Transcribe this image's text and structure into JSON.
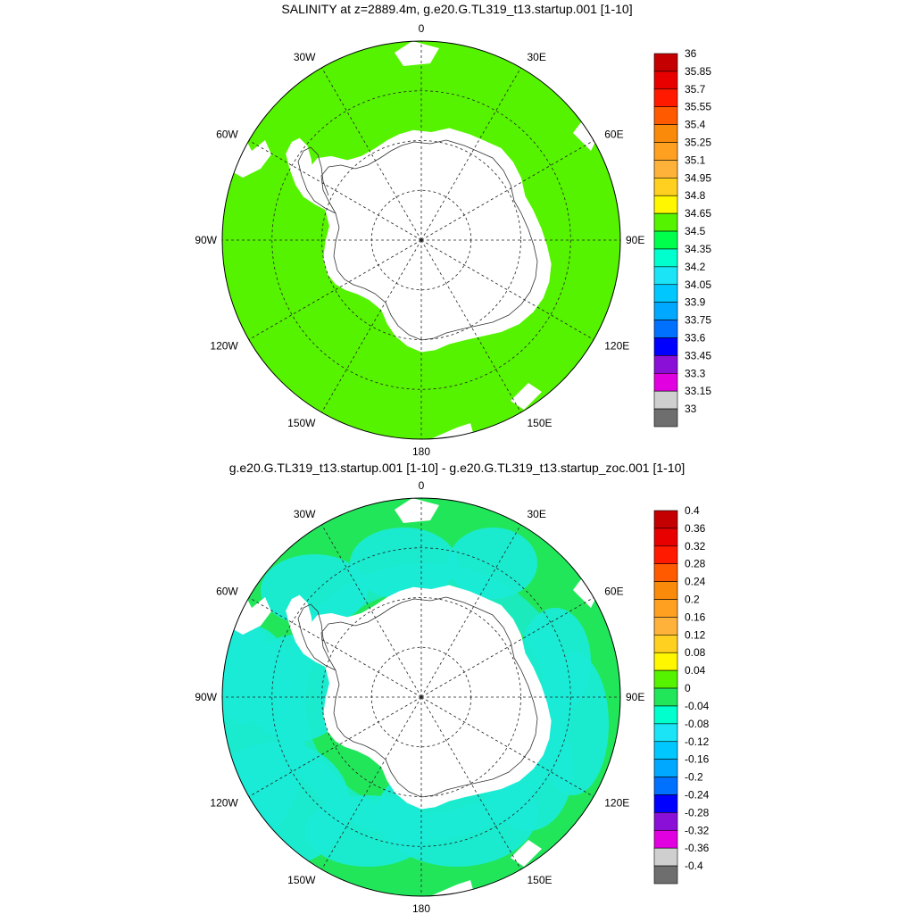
{
  "panels": [
    {
      "title": "SALINITY at z=2889.4m, g.e20.G.TL319_t13.startup.001 [1-10]",
      "lon_labels": [
        "0",
        "30E",
        "60E",
        "90E",
        "120E",
        "150E",
        "180",
        "150W",
        "120W",
        "90W",
        "60W",
        "30W"
      ],
      "colorbar": {
        "labels": [
          "36",
          "35.85",
          "35.7",
          "35.55",
          "35.4",
          "35.25",
          "35.1",
          "34.95",
          "34.8",
          "34.65",
          "34.5",
          "34.35",
          "34.2",
          "34.05",
          "33.9",
          "33.75",
          "33.6",
          "33.45",
          "33.3",
          "33.15",
          "33"
        ],
        "colors": [
          "#c40000",
          "#e80000",
          "#ff1a00",
          "#ff5a00",
          "#f98a0a",
          "#ffa020",
          "#ffb23a",
          "#ffd020",
          "#fff700",
          "#55f300",
          "#00ff4d",
          "#00ffcc",
          "#1ae4f6",
          "#00c8ff",
          "#00a8ff",
          "#0070ff",
          "#0000ff",
          "#8a10d8",
          "#e000e0",
          "#cfcfcf",
          "#6e6e6e"
        ]
      },
      "map": {
        "ocean_color": "#55f300",
        "land_color": "#ffffff",
        "style": "uniform"
      }
    },
    {
      "title": "g.e20.G.TL319_t13.startup.001 [1-10] - g.e20.G.TL319_t13.startup_zoc.001 [1-10]",
      "lon_labels": [
        "0",
        "30E",
        "60E",
        "90E",
        "120E",
        "150E",
        "180",
        "150W",
        "120W",
        "90W",
        "60W",
        "30W"
      ],
      "colorbar": {
        "labels": [
          "0.4",
          "0.36",
          "0.32",
          "0.28",
          "0.24",
          "0.2",
          "0.16",
          "0.12",
          "0.08",
          "0.04",
          "0",
          "-0.04",
          "-0.08",
          "-0.12",
          "-0.16",
          "-0.2",
          "-0.24",
          "-0.28",
          "-0.32",
          "-0.36",
          "-0.4"
        ],
        "colors": [
          "#c40000",
          "#e80000",
          "#ff1a00",
          "#ff5a00",
          "#f98a0a",
          "#ffa020",
          "#ffb23a",
          "#ffd020",
          "#fff700",
          "#55f300",
          "#22e65a",
          "#00ffcc",
          "#1ae4f6",
          "#00c8ff",
          "#00a8ff",
          "#0070ff",
          "#0000ff",
          "#8a10d8",
          "#e000e0",
          "#cfcfcf",
          "#6e6e6e"
        ]
      },
      "map": {
        "ocean_color": "#22e65a",
        "secondary_color": "#1aebd6",
        "land_color": "#ffffff",
        "style": "mottled"
      }
    }
  ]
}
